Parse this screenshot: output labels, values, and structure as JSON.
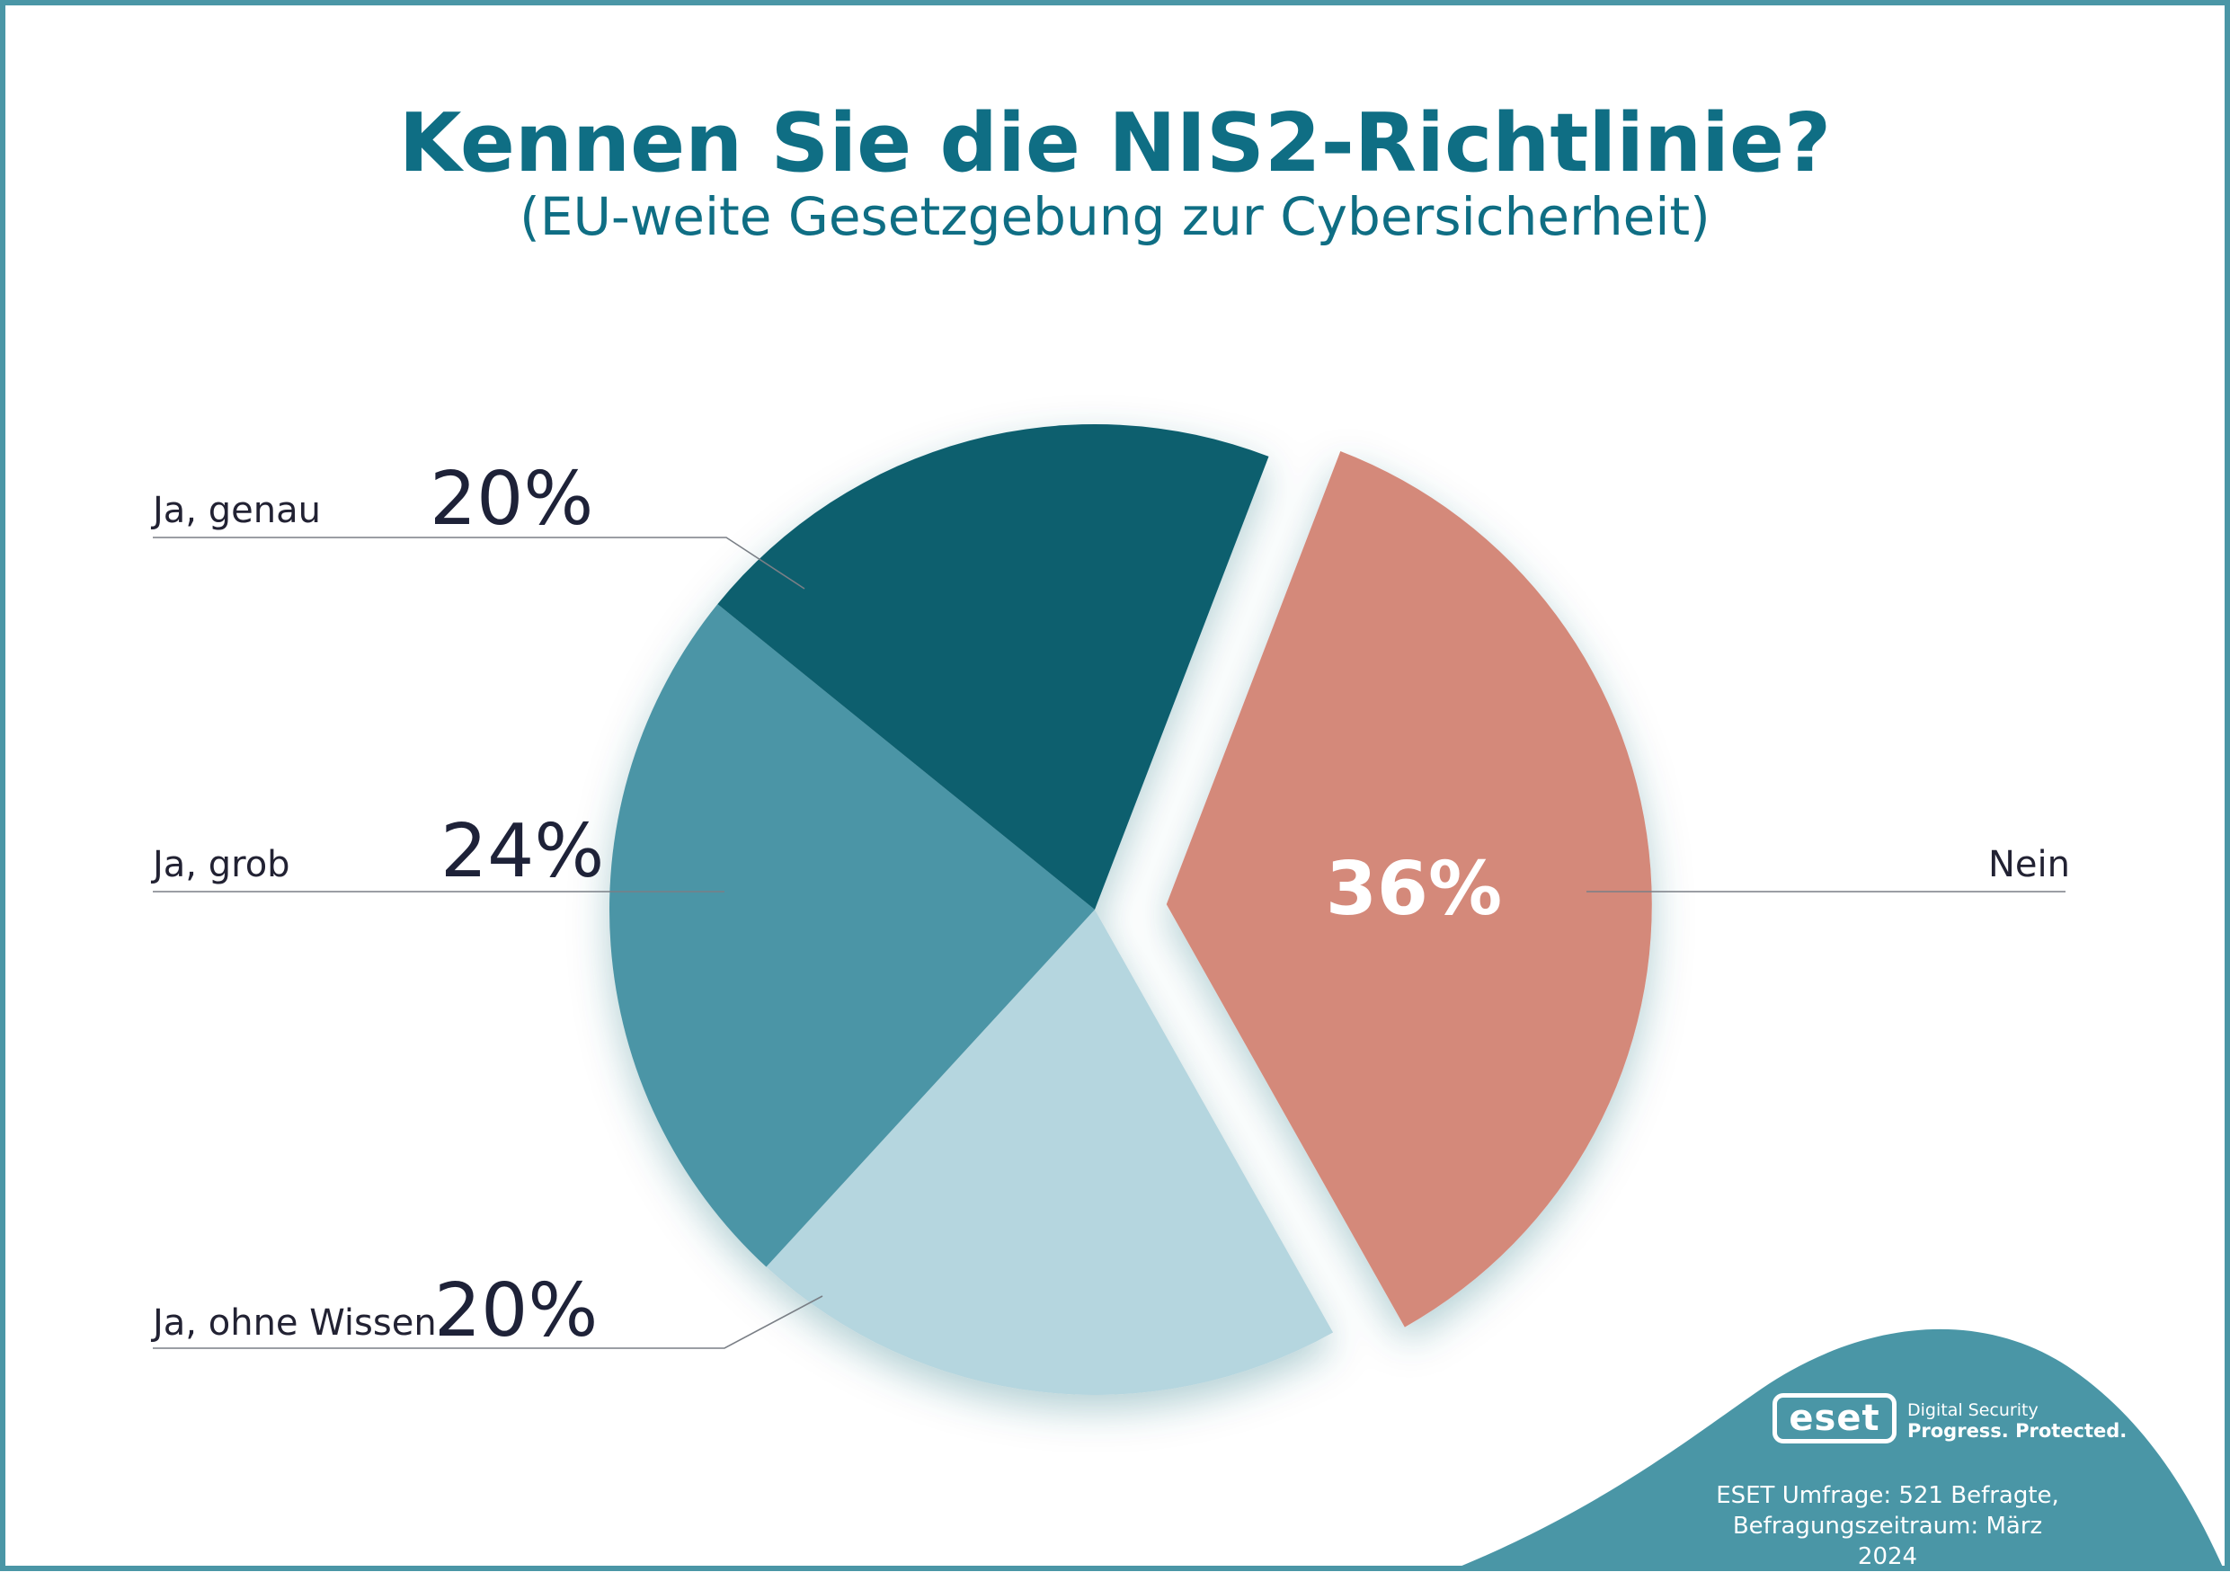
{
  "chart_data": {
    "type": "pie",
    "title": "Kennen Sie die NIS2-Richtlinie?",
    "subtitle": "(EU-weite Gesetzgebung zur Cybersicherheit)",
    "categories": [
      "Nein",
      "Ja, ohne Wissen",
      "Ja, grob",
      "Ja, genau"
    ],
    "values": [
      36,
      20,
      24,
      20
    ],
    "value_labels": [
      "36%",
      "20%",
      "24%",
      "20%"
    ],
    "exploded": [
      "Nein"
    ],
    "colors": [
      "#d4897a",
      "#b5d6df",
      "#4b95a6",
      "#0b5e6e"
    ]
  },
  "branding": {
    "logo_text": "eset",
    "tagline_top": "Digital Security",
    "tagline_bottom": "Progress. Protected.",
    "accent_color": "#4a96a6"
  },
  "source": {
    "line1": "ESET Umfrage: 521 Befragte,",
    "line2": "Befragungszeitraum: März 2024"
  }
}
